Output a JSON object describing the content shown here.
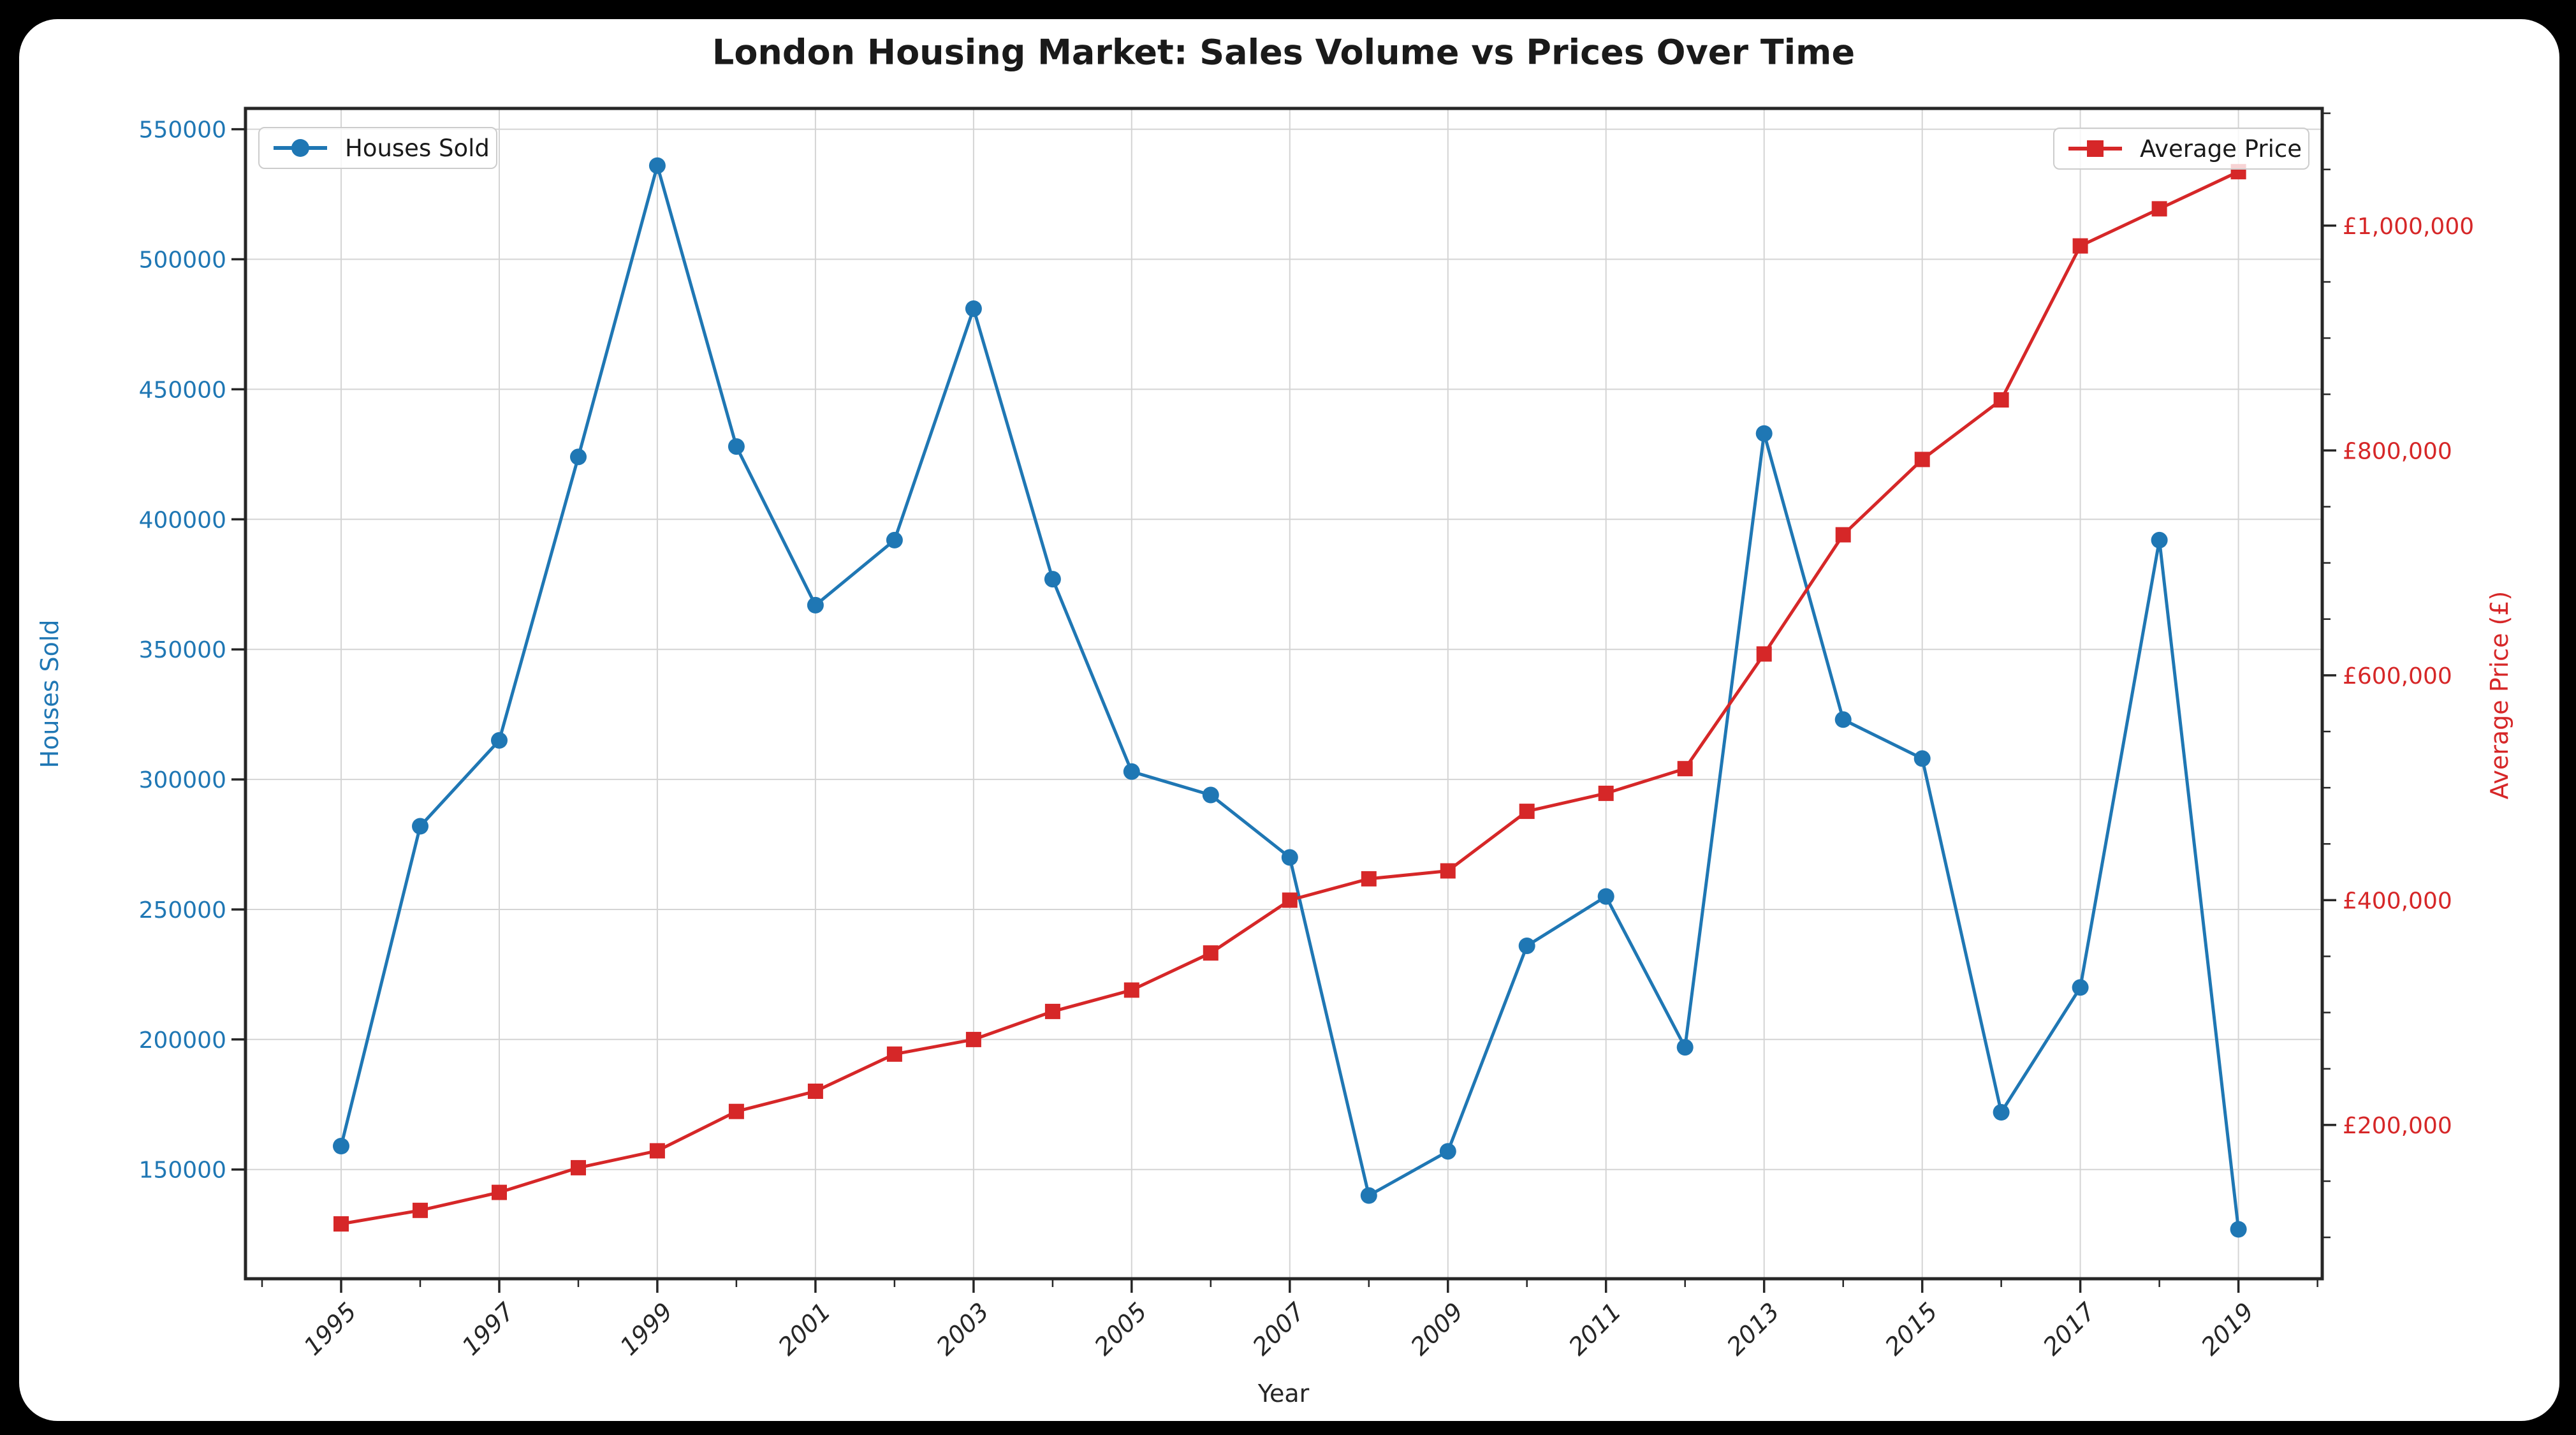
{
  "figure": {
    "title": "London Housing Market: Sales Volume vs Prices Over Time",
    "background_color": "#000000",
    "card_color": "#ffffff"
  },
  "colors": {
    "houses_sold": "#1f77b4",
    "average_price": "#d62728",
    "grid": "#d4d4d4",
    "spine": "#262626",
    "text": "#1a1a1a",
    "x_tick_text": "#262626"
  },
  "legend_left": {
    "label": "Houses Sold"
  },
  "legend_right": {
    "label": "Average Price"
  },
  "axes": {
    "x": {
      "label": "Year",
      "major_years": [
        1995,
        1997,
        1999,
        2001,
        2003,
        2005,
        2007,
        2009,
        2011,
        2013,
        2015,
        2017,
        2019
      ],
      "major_labels": [
        "1995",
        "1997",
        "1999",
        "2001",
        "2003",
        "2005",
        "2007",
        "2009",
        "2011",
        "2013",
        "2015",
        "2017",
        "2019"
      ],
      "minor_years": [
        1994,
        1996,
        1998,
        2000,
        2002,
        2004,
        2006,
        2008,
        2010,
        2012,
        2014,
        2016,
        2018,
        2020
      ]
    },
    "y_left": {
      "label": "Houses Sold",
      "tick_values": [
        150000,
        200000,
        250000,
        300000,
        350000,
        400000,
        450000,
        500000,
        550000
      ],
      "tick_labels": [
        "150000",
        "200000",
        "250000",
        "300000",
        "350000",
        "400000",
        "450000",
        "500000",
        "550000"
      ]
    },
    "y_right": {
      "label": "Average Price (£)",
      "tick_values": [
        200000,
        400000,
        600000,
        800000,
        1000000
      ],
      "tick_labels": [
        "£200,000",
        "£400,000",
        "£600,000",
        "£800,000",
        "£1,000,000"
      ],
      "minor_step": 50000
    }
  },
  "chart_data": {
    "type": "line",
    "title": "London Housing Market: Sales Volume vs Prices Over Time",
    "xlabel": "Year",
    "ylabel_left": "Houses Sold",
    "ylabel_right": "Average Price (£)",
    "grid": true,
    "legend_positions": [
      "upper left",
      "upper right"
    ],
    "x": [
      1995,
      1996,
      1997,
      1998,
      1999,
      2000,
      2001,
      2002,
      2003,
      2004,
      2005,
      2006,
      2007,
      2008,
      2009,
      2010,
      2011,
      2012,
      2013,
      2014,
      2015,
      2016,
      2017,
      2018,
      2019
    ],
    "xlim": [
      1993.79,
      2020.06
    ],
    "ylim_left": [
      108000,
      558000
    ],
    "ylim_right": [
      63200,
      1104300
    ],
    "series": [
      {
        "name": "Houses Sold",
        "axis": "left",
        "color": "#1f77b4",
        "marker": "circle",
        "values": [
          159000,
          282000,
          315000,
          424000,
          536000,
          428000,
          367000,
          392000,
          481000,
          377000,
          303000,
          294000,
          270000,
          140000,
          157000,
          236000,
          255000,
          197000,
          433000,
          323000,
          308000,
          172000,
          220000,
          392000,
          127000
        ]
      },
      {
        "name": "Average Price",
        "axis": "right",
        "color": "#d62728",
        "marker": "square",
        "values": [
          112000,
          124000,
          140000,
          162000,
          177000,
          212000,
          230000,
          263000,
          276000,
          301000,
          320000,
          353000,
          400000,
          419000,
          426000,
          479000,
          495000,
          517000,
          619000,
          725000,
          792000,
          845000,
          982000,
          1015000,
          1048000
        ]
      }
    ]
  }
}
